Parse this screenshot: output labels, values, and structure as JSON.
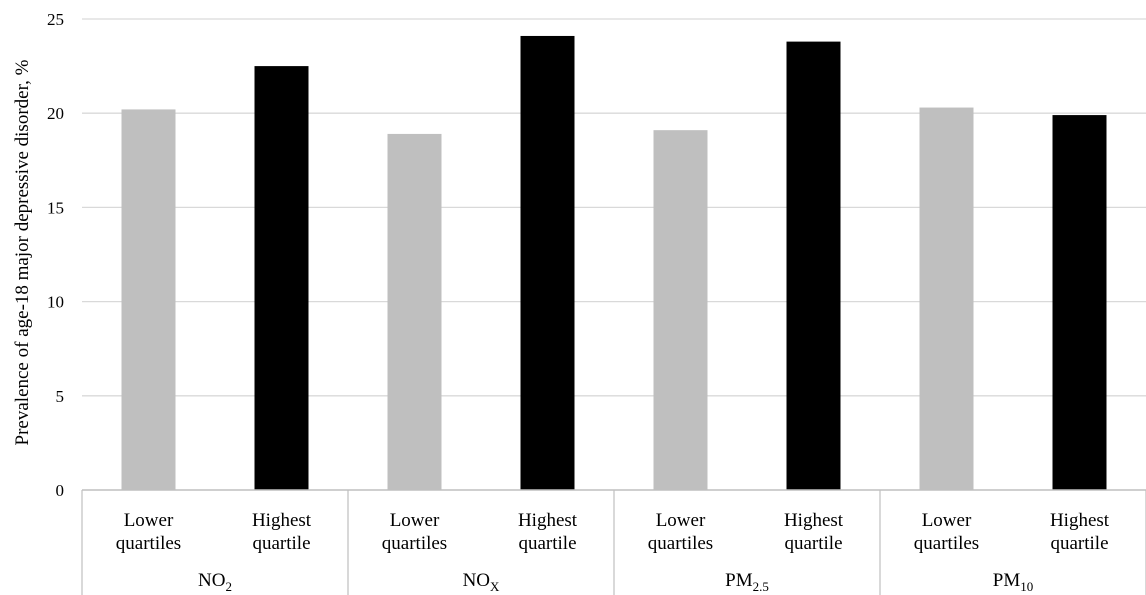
{
  "chart_data": {
    "type": "bar",
    "ylabel": "Prevalence of age-18 major depressive disorder, %",
    "ylim": [
      0,
      25
    ],
    "yticks": [
      "0",
      "5",
      "10",
      "15",
      "20",
      "25"
    ],
    "grid": true,
    "categories": [
      "Lower quartiles",
      "Highest quartile",
      "Lower quartiles",
      "Highest quartile",
      "Lower quartiles",
      "Highest quartile",
      "Lower quartiles",
      "Highest quartile"
    ],
    "category_lines": [
      [
        "Lower",
        "quartiles"
      ],
      [
        "Highest",
        "quartile"
      ],
      [
        "Lower",
        "quartiles"
      ],
      [
        "Highest",
        "quartile"
      ],
      [
        "Lower",
        "quartiles"
      ],
      [
        "Highest",
        "quartile"
      ],
      [
        "Lower",
        "quartiles"
      ],
      [
        "Highest",
        "quartile"
      ]
    ],
    "groups": [
      {
        "label": "NO",
        "sub": "2"
      },
      {
        "label": "NO",
        "sub": "X"
      },
      {
        "label": "PM",
        "sub": "2.5"
      },
      {
        "label": "PM",
        "sub": "10"
      }
    ],
    "values": [
      20.2,
      22.5,
      18.9,
      24.1,
      19.1,
      23.8,
      20.3,
      19.9
    ],
    "colors": {
      "lower": "#bfbfbf",
      "highest": "#000000",
      "grid": "#d9d9d9",
      "axis": "#bfbfbf"
    }
  }
}
